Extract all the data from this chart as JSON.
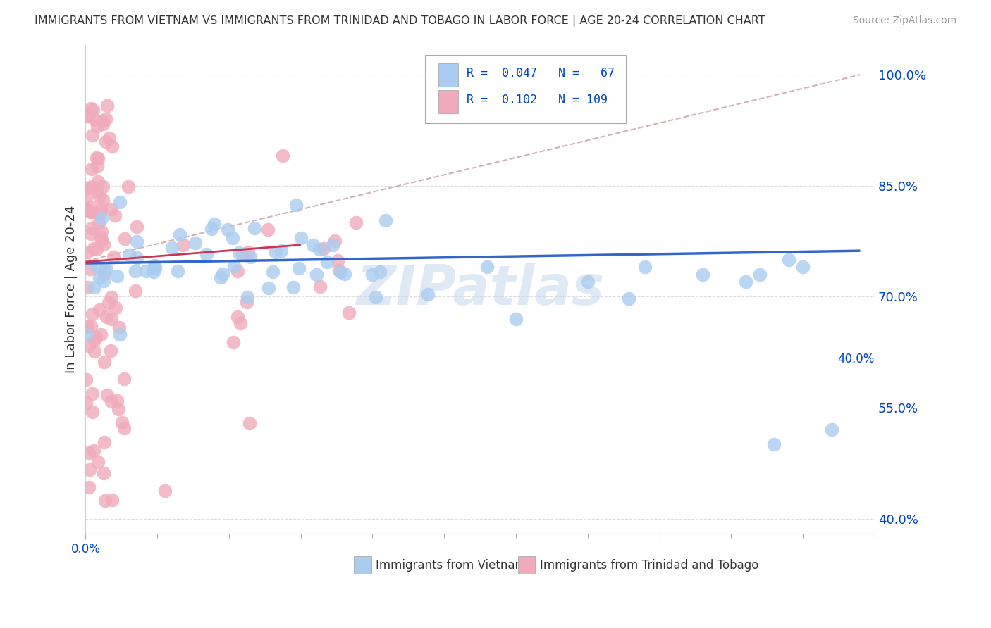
{
  "title": "IMMIGRANTS FROM VIETNAM VS IMMIGRANTS FROM TRINIDAD AND TOBAGO IN LABOR FORCE | AGE 20-24 CORRELATION CHART",
  "source": "Source: ZipAtlas.com",
  "ylabel": "In Labor Force | Age 20-24",
  "xlim": [
    0.0,
    0.55
  ],
  "ylim": [
    0.38,
    1.04
  ],
  "yticks": [
    0.4,
    0.55,
    0.7,
    0.85,
    1.0
  ],
  "ytick_labels": [
    "40.0%",
    "55.0%",
    "70.0%",
    "85.0%",
    "100.0%"
  ],
  "vietnam_R": 0.047,
  "vietnam_N": 67,
  "trinidad_R": 0.102,
  "trinidad_N": 109,
  "vietnam_color": "#aaccf0",
  "trinidad_color": "#f0aabb",
  "vietnam_line_color": "#3366cc",
  "trinidad_line_color": "#cc3355",
  "ref_line_color": "#ccaaaa",
  "background_color": "#ffffff",
  "watermark": "ZIPatlas",
  "legend_color": "#0044bb",
  "vietnam_seed": 10,
  "trinidad_seed": 20
}
